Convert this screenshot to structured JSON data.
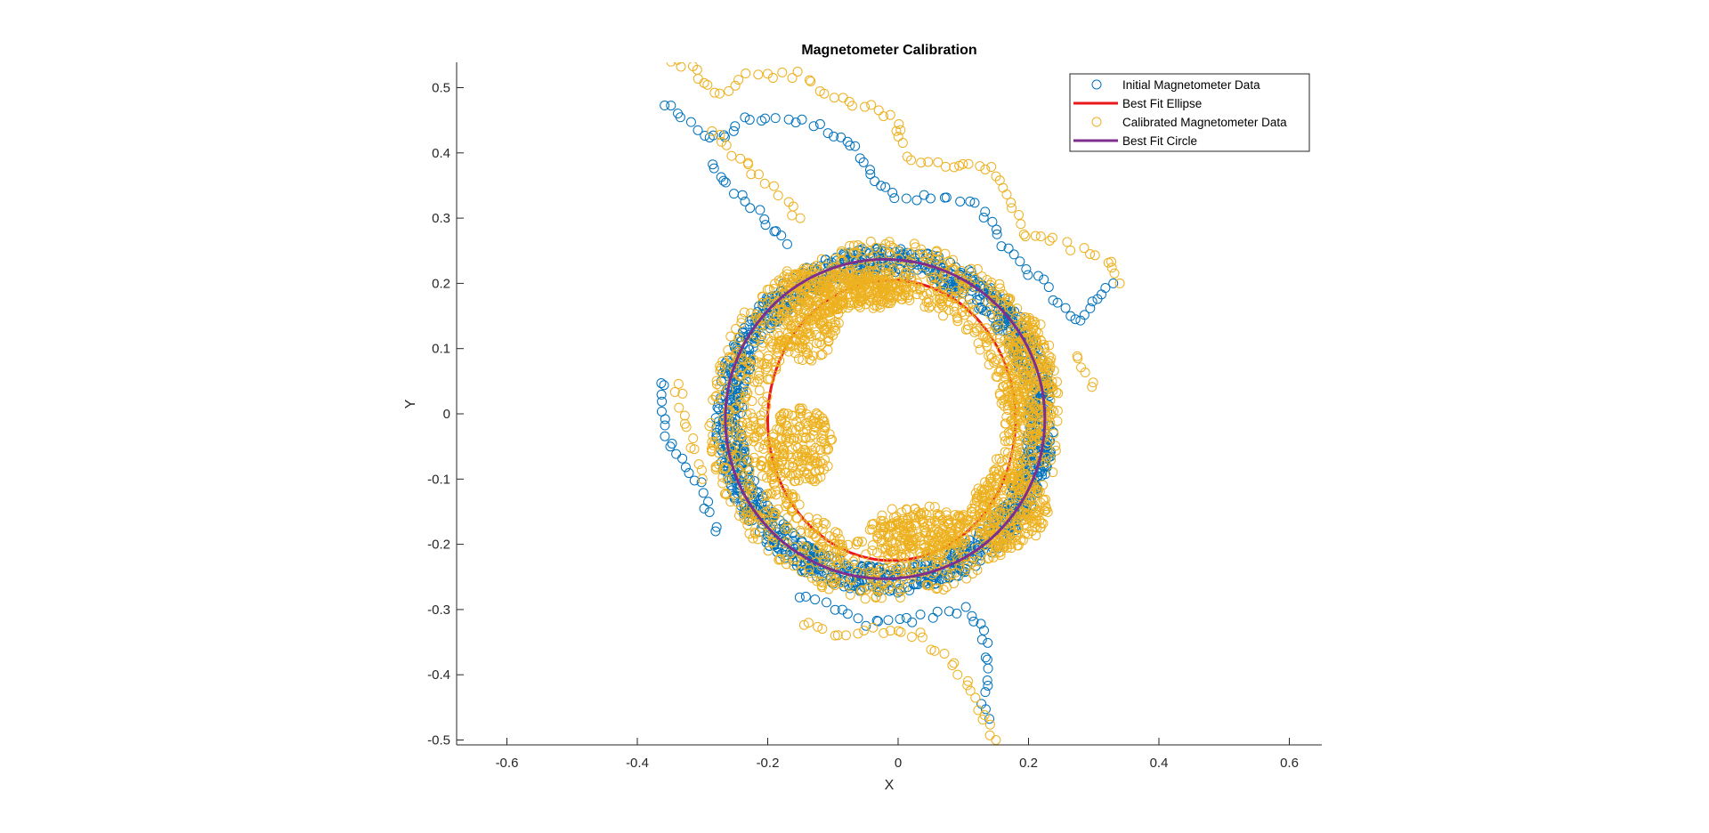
{
  "chart_data": {
    "type": "scatter",
    "title": "Magnetometer Calibration",
    "xlabel": "X",
    "ylabel": "Y",
    "xlim": [
      -0.67,
      0.65
    ],
    "ylim": [
      -0.51,
      0.54
    ],
    "x_ticks": [
      -0.6,
      -0.4,
      -0.2,
      0,
      0.2,
      0.4,
      0.6
    ],
    "y_ticks": [
      -0.5,
      -0.4,
      -0.3,
      -0.2,
      -0.1,
      0,
      0.1,
      0.2,
      0.3,
      0.4,
      0.5
    ],
    "x_tick_labels": [
      "-0.6",
      "-0.4",
      "-0.2",
      "0",
      "0.2",
      "0.4",
      "0.6"
    ],
    "y_tick_labels": [
      "-0.5",
      "-0.4",
      "-0.3",
      "-0.2",
      "-0.1",
      "0",
      "0.1",
      "0.2",
      "0.3",
      "0.4",
      "0.5"
    ],
    "grid": false,
    "legend_position": "top-right",
    "colors": {
      "initial": "#0072BD",
      "calibrated": "#EDB120",
      "ellipse": "#E8181B",
      "circle": "#7E2F8E",
      "axis": "#262626"
    },
    "series": [
      {
        "name": "Initial Magnetometer Data",
        "kind": "scatter-open-circle",
        "path_points": [
          [
            -0.36,
            0.475
          ],
          [
            -0.33,
            0.45
          ],
          [
            -0.3,
            0.43
          ],
          [
            -0.27,
            0.42
          ],
          [
            -0.24,
            0.45
          ],
          [
            -0.2,
            0.455
          ],
          [
            -0.16,
            0.45
          ],
          [
            -0.12,
            0.44
          ],
          [
            -0.08,
            0.42
          ],
          [
            -0.05,
            0.39
          ],
          [
            -0.03,
            0.35
          ],
          [
            0.0,
            0.33
          ],
          [
            0.04,
            0.33
          ],
          [
            0.08,
            0.33
          ],
          [
            0.12,
            0.32
          ],
          [
            0.15,
            0.28
          ],
          [
            0.17,
            0.25
          ],
          [
            0.19,
            0.23
          ],
          [
            0.22,
            0.2
          ],
          [
            0.24,
            0.18
          ],
          [
            0.27,
            0.14
          ],
          [
            0.3,
            0.17
          ],
          [
            0.33,
            0.2
          ],
          [
            -0.29,
            0.38
          ],
          [
            -0.26,
            0.35
          ],
          [
            -0.23,
            0.33
          ],
          [
            -0.2,
            0.29
          ],
          [
            -0.17,
            0.26
          ],
          [
            -0.36,
            0.05
          ],
          [
            -0.36,
            -0.02
          ],
          [
            -0.34,
            -0.06
          ],
          [
            -0.3,
            -0.12
          ],
          [
            -0.28,
            -0.18
          ],
          [
            -0.15,
            -0.28
          ],
          [
            -0.1,
            -0.3
          ],
          [
            -0.05,
            -0.32
          ],
          [
            0.0,
            -0.32
          ],
          [
            0.05,
            -0.31
          ],
          [
            0.1,
            -0.3
          ],
          [
            0.13,
            -0.32
          ],
          [
            0.14,
            -0.38
          ],
          [
            0.13,
            -0.44
          ],
          [
            0.14,
            -0.48
          ]
        ],
        "ring_center": [
          -0.02,
          -0.01
        ],
        "ring_radii": [
          0.22,
          0.26
        ]
      },
      {
        "name": "Best Fit Ellipse",
        "kind": "line",
        "center": [
          -0.01,
          -0.01
        ],
        "radii": [
          0.19,
          0.215
        ]
      },
      {
        "name": "Calibrated Magnetometer Data",
        "kind": "scatter-open-circle",
        "path_points": [
          [
            -0.35,
            0.54
          ],
          [
            -0.32,
            0.53
          ],
          [
            -0.29,
            0.5
          ],
          [
            -0.27,
            0.485
          ],
          [
            -0.25,
            0.5
          ],
          [
            -0.23,
            0.52
          ],
          [
            -0.19,
            0.52
          ],
          [
            -0.15,
            0.52
          ],
          [
            -0.12,
            0.5
          ],
          [
            -0.08,
            0.48
          ],
          [
            -0.04,
            0.47
          ],
          [
            0.0,
            0.45
          ],
          [
            0.0,
            0.42
          ],
          [
            0.02,
            0.39
          ],
          [
            0.06,
            0.38
          ],
          [
            0.09,
            0.38
          ],
          [
            0.12,
            0.38
          ],
          [
            0.15,
            0.37
          ],
          [
            0.17,
            0.34
          ],
          [
            0.18,
            0.3
          ],
          [
            0.2,
            0.27
          ],
          [
            0.23,
            0.27
          ],
          [
            0.28,
            0.25
          ],
          [
            0.33,
            0.23
          ],
          [
            0.34,
            0.2
          ],
          [
            -0.28,
            0.43
          ],
          [
            -0.25,
            0.4
          ],
          [
            -0.22,
            0.37
          ],
          [
            -0.18,
            0.34
          ],
          [
            -0.15,
            0.3
          ],
          [
            -0.34,
            0.05
          ],
          [
            -0.33,
            0.0
          ],
          [
            -0.31,
            -0.06
          ],
          [
            -0.3,
            -0.1
          ],
          [
            -0.15,
            -0.32
          ],
          [
            -0.1,
            -0.34
          ],
          [
            -0.05,
            -0.33
          ],
          [
            0.03,
            -0.34
          ],
          [
            0.08,
            -0.38
          ],
          [
            0.11,
            -0.42
          ],
          [
            0.13,
            -0.46
          ],
          [
            0.15,
            -0.5
          ],
          [
            0.3,
            0.04
          ],
          [
            0.27,
            0.1
          ]
        ],
        "ring_center": [
          -0.02,
          -0.01
        ],
        "ring_radii": [
          0.18,
          0.27
        ],
        "blobs": [
          [
            -0.14,
            0.15,
            0.05,
            0.07
          ],
          [
            -0.15,
            -0.05,
            0.05,
            0.06
          ],
          [
            -0.05,
            0.19,
            0.07,
            0.03
          ],
          [
            0.03,
            -0.18,
            0.08,
            0.04
          ],
          [
            0.17,
            -0.15,
            0.06,
            0.06
          ],
          [
            0.2,
            0.05,
            0.04,
            0.1
          ]
        ]
      },
      {
        "name": "Best Fit Circle",
        "kind": "line",
        "center": [
          -0.02,
          -0.008
        ],
        "radius": 0.245
      }
    ]
  }
}
